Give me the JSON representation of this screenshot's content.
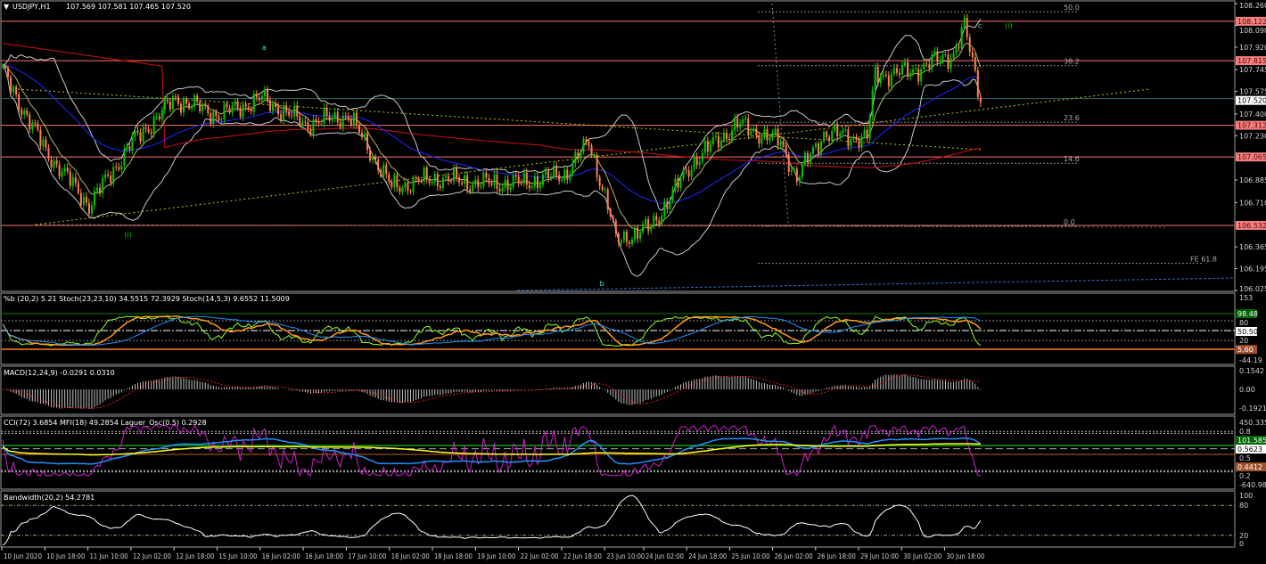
{
  "header": {
    "symbol": "USDJPY,H1",
    "ohlc": "107.569 107.581 107.465 107.520"
  },
  "colors": {
    "bull": "#00c800",
    "bear": "#ff7f50",
    "level": "#ff7070",
    "ma_slow": "#d01010",
    "ma_fast": "#1a2aff",
    "bands": "#c8c8c8",
    "grid": "#808080",
    "current": "#2e6b6b"
  },
  "price_axis": {
    "ticks": [
      "108.260",
      "108.090",
      "107.920",
      "107.745",
      "107.575",
      "107.400",
      "107.230",
      "106.885",
      "106.710",
      "106.365",
      "106.195",
      "106.025"
    ],
    "levels": [
      {
        "price": 108.122,
        "label": "108.122"
      },
      {
        "price": 107.815,
        "label": "107.815"
      },
      {
        "price": 107.312,
        "label": "107.312"
      },
      {
        "price": 107.065,
        "label": "107.065"
      },
      {
        "price": 106.532,
        "label": "106.532"
      }
    ],
    "current": {
      "price": 107.52,
      "label": "107.520"
    }
  },
  "fib_labels": [
    {
      "text": "50.0",
      "price": 108.21
    },
    {
      "text": "38.2",
      "price": 107.79
    },
    {
      "text": "23.6",
      "price": 107.35
    },
    {
      "text": "14.6",
      "price": 107.03
    },
    {
      "text": "0.0",
      "price": 106.54
    },
    {
      "text": "FE 61.8",
      "price": 106.25
    }
  ],
  "wave_labels": [
    {
      "text": "a",
      "time_index": 96,
      "price": 107.9,
      "color": "#40e0d0"
    },
    {
      "text": "(i)",
      "time_index": 45,
      "price": 106.44,
      "color": "#00c800"
    },
    {
      "text": "b",
      "time_index": 221,
      "price": 106.06,
      "color": "#40e0d0"
    },
    {
      "text": "c",
      "time_index": 361,
      "price": 108.07,
      "color": "#40e0d0"
    },
    {
      "text": "(i)",
      "time_index": 371,
      "price": 108.07,
      "color": "#00c800"
    }
  ],
  "panels": {
    "stoch": {
      "title": "%b (20,2) 5.21  Stoch(23,23,10) 34.5515 72.3929  Stoch(14,5,3) 9.6552 11.5009",
      "ticks": [
        "153",
        "80",
        "20",
        "-44.19"
      ],
      "tags": [
        {
          "label": "98.48",
          "color": "#006400"
        },
        {
          "label": "50.50",
          "color": "#ffffff"
        },
        {
          "label": "5.60",
          "color": "#a0522d"
        }
      ]
    },
    "macd": {
      "title": "MACD(12,24,9) -0.0291 0.0310",
      "ticks": [
        "0.1542",
        "0.00",
        "-0.1921"
      ]
    },
    "cci": {
      "title": "CCI(72) 3.6854  MFI(18) 49.2854  Laguer_Osc(0.5) 0.2928",
      "ticks": [
        "450.3358",
        "0.8",
        "0.5",
        "0.2",
        "-640.9881"
      ],
      "tags": [
        {
          "label": "101.5859",
          "color": "#006400"
        },
        {
          "label": "0.5623",
          "color": "#ffffff"
        },
        {
          "label": "0.4412",
          "color": "#a0522d"
        }
      ]
    },
    "bandwidth": {
      "title": "Bandwidth(20,2) 54.2781",
      "ticks": [
        "100",
        "80",
        "20",
        "0"
      ]
    }
  },
  "time_axis": [
    "10 Jun 2020",
    "10 Jun 18:00",
    "11 Jun 10:00",
    "12 Jun 02:00",
    "12 Jun 18:00",
    "15 Jun 10:00",
    "16 Jun 02:00",
    "16 Jun 18:00",
    "17 Jun 10:00",
    "18 Jun 02:00",
    "18 Jun 18:00",
    "19 Jun 10:00",
    "22 Jun 02:00",
    "22 Jun 18:00",
    "23 Jun 10:00",
    "24 Jun 02:00",
    "24 Jun 18:00",
    "25 Jun 10:00",
    "26 Jun 02:00",
    "26 Jun 18:00",
    "29 Jun 10:00",
    "30 Jun 02:00",
    "30 Jun 18:00"
  ],
  "chart_data": {
    "type": "candlestick",
    "timeframe": "H1",
    "ylim": [
      106.025,
      108.26
    ],
    "approx_close": [
      {
        "x": "10 Jun 2020",
        "y": 107.73
      },
      {
        "x": "10 Jun 18:00",
        "y": 107.11
      },
      {
        "x": "11 Jun 10:00",
        "y": 106.69
      },
      {
        "x": "12 Jun 02:00",
        "y": 107.18
      },
      {
        "x": "12 Jun 18:00",
        "y": 107.52
      },
      {
        "x": "15 Jun 10:00",
        "y": 107.39
      },
      {
        "x": "16 Jun 02:00",
        "y": 107.52
      },
      {
        "x": "16 Jun 18:00",
        "y": 107.32
      },
      {
        "x": "17 Jun 10:00",
        "y": 107.39
      },
      {
        "x": "18 Jun 02:00",
        "y": 106.83
      },
      {
        "x": "18 Jun 18:00",
        "y": 106.9
      },
      {
        "x": "19 Jun 10:00",
        "y": 106.86
      },
      {
        "x": "22 Jun 02:00",
        "y": 106.86
      },
      {
        "x": "22 Jun 18:00",
        "y": 106.93
      },
      {
        "x": "23 Jun 03:00",
        "y": 107.18
      },
      {
        "x": "23 Jun 10:00",
        "y": 106.69
      },
      {
        "x": "23 Jun 13:00",
        "y": 106.41
      },
      {
        "x": "24 Jun 02:00",
        "y": 106.52
      },
      {
        "x": "24 Jun 18:00",
        "y": 107.04
      },
      {
        "x": "25 Jun 10:00",
        "y": 107.32
      },
      {
        "x": "26 Jun 02:00",
        "y": 107.18
      },
      {
        "x": "26 Jun 08:00",
        "y": 106.9
      },
      {
        "x": "26 Jun 18:00",
        "y": 107.25
      },
      {
        "x": "29 Jun 10:00",
        "y": 107.21
      },
      {
        "x": "29 Jun 13:00",
        "y": 107.7
      },
      {
        "x": "30 Jun 02:00",
        "y": 107.73
      },
      {
        "x": "30 Jun 18:00",
        "y": 107.87
      },
      {
        "x": "30 Jun 22:00",
        "y": 108.08
      },
      {
        "x": "1 Jul 04:00",
        "y": 107.52
      }
    ],
    "approx_close_bar_index": [
      0,
      16,
      32,
      48,
      64,
      80,
      96,
      112,
      128,
      144,
      160,
      176,
      192,
      208,
      217,
      224,
      227,
      240,
      256,
      272,
      288,
      294,
      304,
      320,
      323,
      336,
      352,
      356,
      362
    ]
  }
}
